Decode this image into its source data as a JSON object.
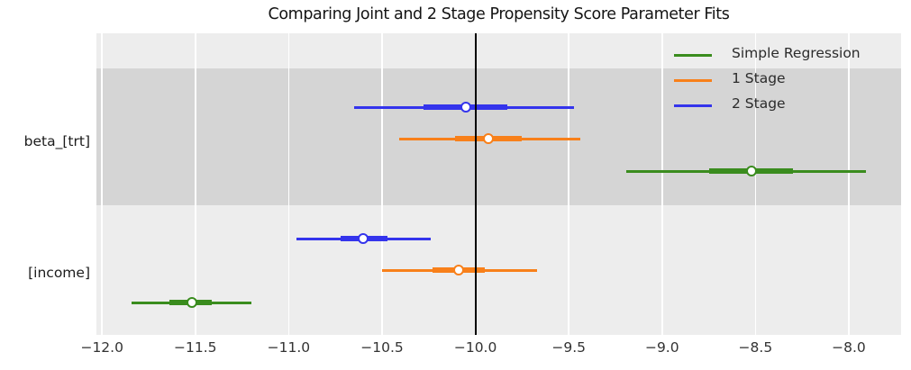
{
  "title": "Comparing Joint and 2 Stage Propensity Score Parameter Fits",
  "chart_data": {
    "type": "scatter",
    "subtype": "forest-plot-with-error-bars",
    "title": "Comparing Joint and 2 Stage Propensity Score Parameter Fits",
    "categories": [
      "beta_[trt]",
      "[income]"
    ],
    "xlim": [
      -12.03,
      -7.72
    ],
    "x_ticks": [
      -12.0,
      -11.5,
      -11.0,
      -10.5,
      -10.0,
      -9.5,
      -9.0,
      -8.5,
      -8.0
    ],
    "x_tick_labels": [
      "−12.0",
      "−11.5",
      "−11.0",
      "−10.5",
      "−10.0",
      "−9.5",
      "−9.0",
      "−8.5",
      "−8.0"
    ],
    "reference_line_x": -10.0,
    "grid": {
      "vertical_gridlines": true,
      "gridline_color": "#FFFFFF"
    },
    "background_bands": {
      "light": "#EDEDED",
      "dark": "#D5D5D5"
    },
    "legend": {
      "position": "upper right",
      "entries": [
        "Simple Regression",
        "1 Stage",
        "2 Stage"
      ]
    },
    "series": [
      {
        "name": "Simple Regression",
        "color": "#3A8C1E",
        "points": [
          {
            "category": "beta_[trt]",
            "center": -8.52,
            "ci_inner": [
              -8.75,
              -8.3
            ],
            "ci_outer": [
              -9.19,
              -7.91
            ]
          },
          {
            "category": "[income]",
            "center": -11.52,
            "ci_inner": [
              -11.64,
              -11.41
            ],
            "ci_outer": [
              -11.84,
              -11.2
            ]
          }
        ]
      },
      {
        "name": "1 Stage",
        "color": "#F8801A",
        "points": [
          {
            "category": "beta_[trt]",
            "center": -9.93,
            "ci_inner": [
              -10.11,
              -9.75
            ],
            "ci_outer": [
              -10.41,
              -9.44
            ]
          },
          {
            "category": "[income]",
            "center": -10.09,
            "ci_inner": [
              -10.23,
              -9.95
            ],
            "ci_outer": [
              -10.5,
              -9.67
            ]
          }
        ]
      },
      {
        "name": "2 Stage",
        "color": "#3434EC",
        "points": [
          {
            "category": "beta_[trt]",
            "center": -10.05,
            "ci_inner": [
              -10.28,
              -9.83
            ],
            "ci_outer": [
              -10.65,
              -9.47
            ]
          },
          {
            "category": "[income]",
            "center": -10.6,
            "ci_inner": [
              -10.72,
              -10.47
            ],
            "ci_outer": [
              -10.96,
              -10.24
            ]
          }
        ]
      }
    ],
    "marker": {
      "shape": "circle",
      "fill": "#FFFFFF",
      "edge": "series-color"
    }
  }
}
